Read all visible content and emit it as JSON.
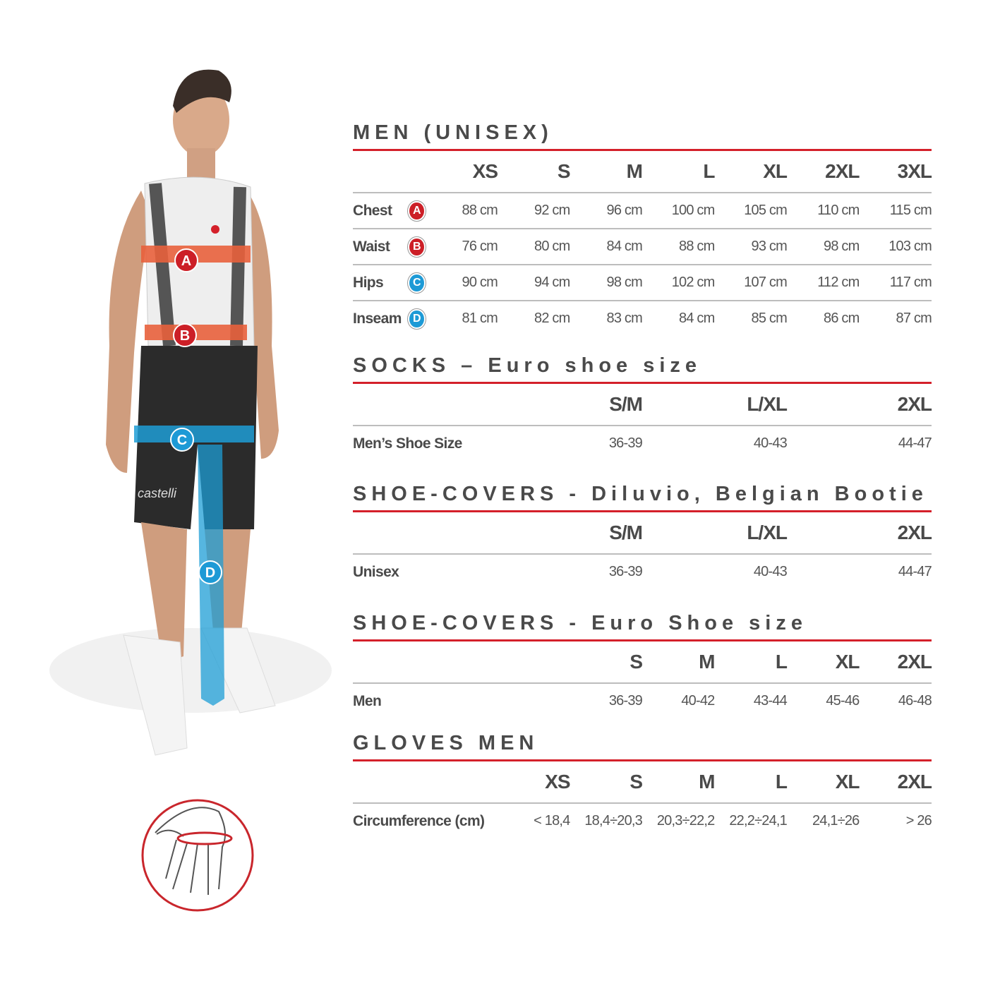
{
  "colors": {
    "accent_red": "#d4202a",
    "badge_red": "#cc1f27",
    "badge_blue": "#1d9ad6",
    "band_orange": "#e8603c",
    "band_blue": "#1e9ed6"
  },
  "figure": {
    "markers": [
      "A",
      "B",
      "C",
      "D"
    ],
    "brand_text": "castelli",
    "icons": [
      "measure-band-icon",
      "hand-circumference-icon"
    ]
  },
  "tables": [
    {
      "title": "MEN (UNISEX)",
      "columns": [
        "XS",
        "S",
        "M",
        "L",
        "XL",
        "2XL",
        "3XL"
      ],
      "rows": [
        {
          "label": "Chest",
          "badge": "A",
          "badge_color": "#cc1f27",
          "values": [
            "88 cm",
            "92 cm",
            "96 cm",
            "100 cm",
            "105 cm",
            "110 cm",
            "115 cm"
          ]
        },
        {
          "label": "Waist",
          "badge": "B",
          "badge_color": "#cc1f27",
          "values": [
            "76 cm",
            "80 cm",
            "84 cm",
            "88 cm",
            "93 cm",
            "98 cm",
            "103 cm"
          ]
        },
        {
          "label": "Hips",
          "badge": "C",
          "badge_color": "#1d9ad6",
          "values": [
            "90 cm",
            "94 cm",
            "98 cm",
            "102 cm",
            "107 cm",
            "112 cm",
            "117 cm"
          ]
        },
        {
          "label": "Inseam",
          "badge": "D",
          "badge_color": "#1d9ad6",
          "values": [
            "81 cm",
            "82 cm",
            "83 cm",
            "84 cm",
            "85 cm",
            "86 cm",
            "87 cm"
          ]
        }
      ]
    },
    {
      "title": "SOCKS – Euro shoe size",
      "columns": [
        "S/M",
        "L/XL",
        "2XL"
      ],
      "rows": [
        {
          "label": "Men’s Shoe Size",
          "values": [
            "36-39",
            "40-43",
            "44-47"
          ]
        }
      ]
    },
    {
      "title": "SHOE-COVERS - Diluvio, Belgian Bootie",
      "columns": [
        "S/M",
        "L/XL",
        "2XL"
      ],
      "rows": [
        {
          "label": "Unisex",
          "values": [
            "36-39",
            "40-43",
            "44-47"
          ]
        }
      ]
    },
    {
      "title": "SHOE-COVERS - Euro Shoe size",
      "columns": [
        "S",
        "M",
        "L",
        "XL",
        "2XL"
      ],
      "rows": [
        {
          "label": "Men",
          "values": [
            "36-39",
            "40-42",
            "43-44",
            "45-46",
            "46-48"
          ]
        }
      ]
    },
    {
      "title": "GLOVES MEN",
      "columns": [
        "XS",
        "S",
        "M",
        "L",
        "XL",
        "2XL"
      ],
      "rows": [
        {
          "label": "Circumference (cm)",
          "values": [
            "< 18,4",
            "18,4÷20,3",
            "20,3÷22,2",
            "22,2÷24,1",
            "24,1÷26",
            "> 26"
          ]
        }
      ]
    }
  ]
}
